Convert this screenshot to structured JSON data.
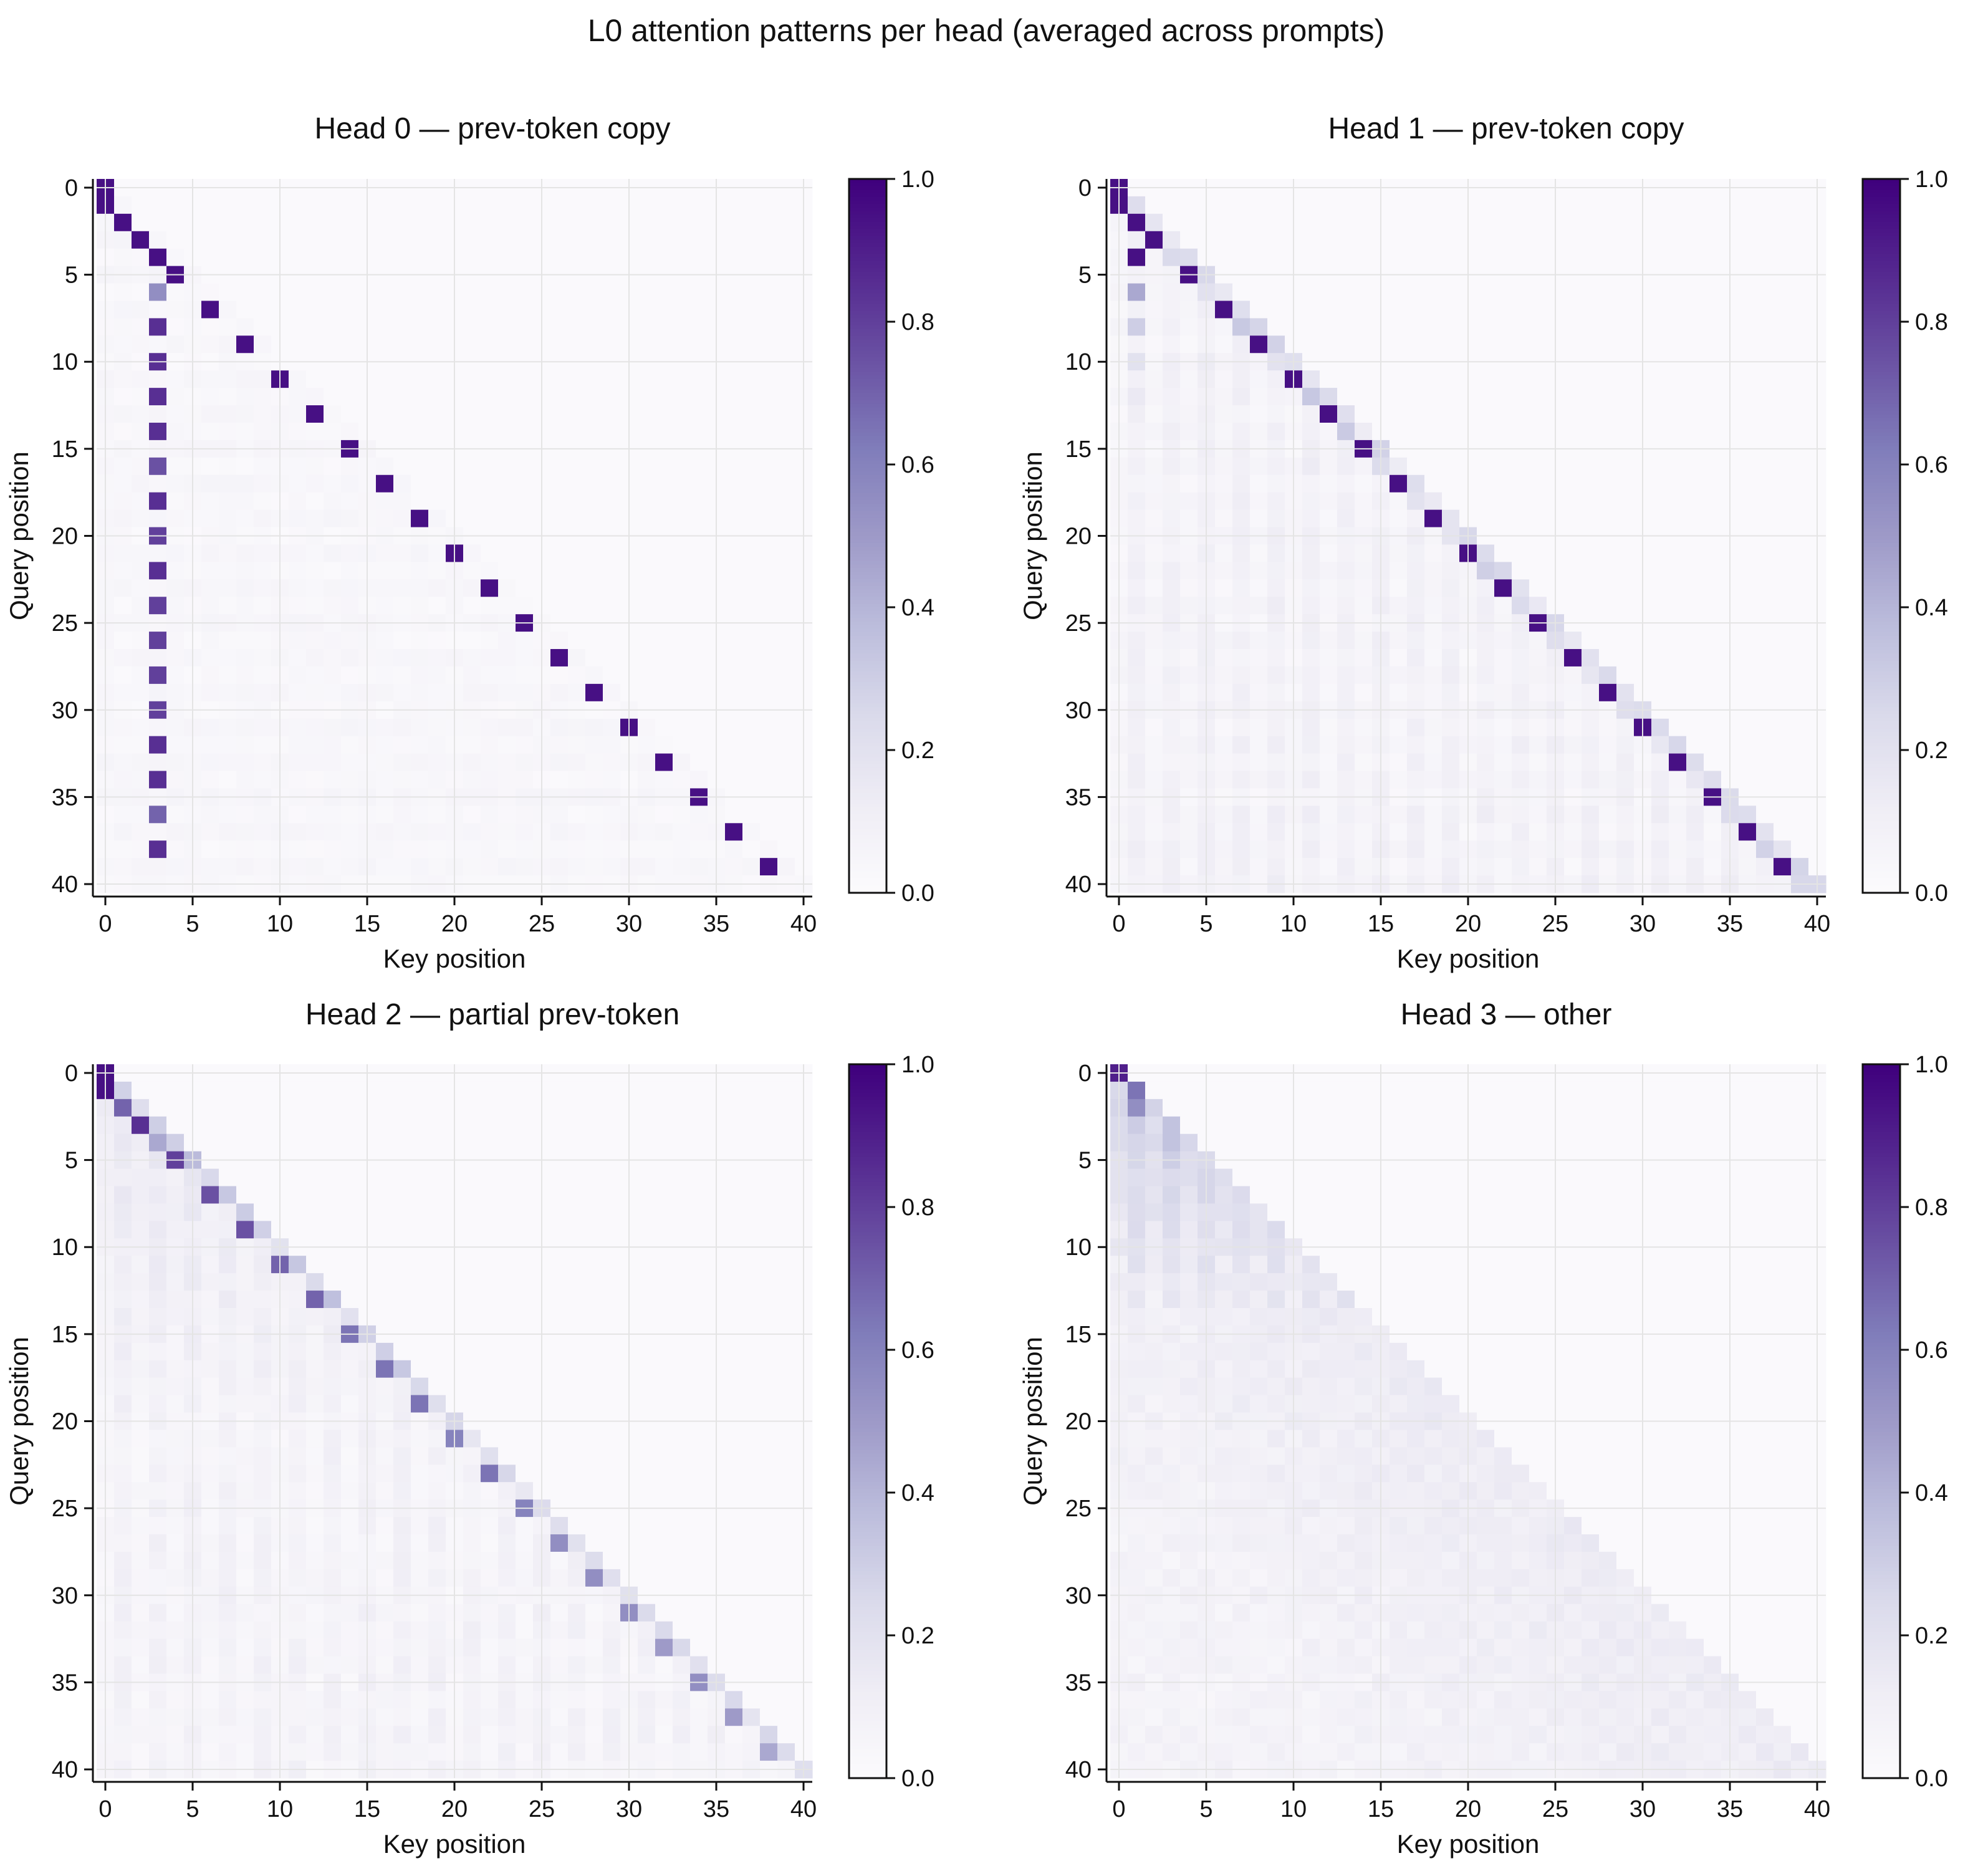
{
  "figure_title": "L0 attention patterns per head (averaged across prompts)",
  "colors": {
    "cmap": [
      "#fcfbfd",
      "#efedf5",
      "#dadaeb",
      "#bcbddc",
      "#9e9ac8",
      "#807dba",
      "#6a51a3",
      "#54278f",
      "#3f007d"
    ],
    "grid": "#e4e4e4",
    "axis": "#111111"
  },
  "chart_data": [
    {
      "type": "heatmap",
      "title": "Head 0 — prev-token copy",
      "pattern": "copy_fixed_col",
      "xlabel": "Key position",
      "ylabel": "Query position",
      "n_positions": 41,
      "xlim": [
        0,
        40
      ],
      "ylim": [
        40,
        0
      ],
      "xticks": [
        0,
        5,
        10,
        15,
        20,
        25,
        30,
        35,
        40
      ],
      "yticks": [
        0,
        5,
        10,
        15,
        20,
        25,
        30,
        35,
        40
      ],
      "diagonal": {
        "rows": [
          0,
          1,
          2,
          3,
          4,
          5,
          7,
          9,
          11,
          13,
          15,
          17,
          19,
          21,
          23,
          25,
          27,
          29,
          31,
          33,
          35,
          37,
          39
        ],
        "cols": [
          0,
          0,
          1,
          2,
          3,
          4,
          6,
          8,
          10,
          12,
          14,
          16,
          18,
          20,
          22,
          24,
          26,
          28,
          30,
          32,
          34,
          36,
          38
        ],
        "value": 0.95
      },
      "column_stripe": {
        "col": 3,
        "rows": [
          6,
          8,
          10,
          12,
          14,
          16,
          18,
          20,
          22,
          24,
          26,
          28,
          30,
          32,
          34,
          36,
          38
        ],
        "values": [
          0.55,
          0.85,
          0.85,
          0.85,
          0.85,
          0.75,
          0.85,
          0.8,
          0.85,
          0.8,
          0.8,
          0.8,
          0.8,
          0.85,
          0.85,
          0.7,
          0.85
        ]
      },
      "background": 0.03,
      "colorbar": {
        "min": 0.0,
        "max": 1.0,
        "ticks": [
          "0.0",
          "0.2",
          "0.4",
          "0.6",
          "0.8",
          "1.0"
        ]
      }
    },
    {
      "type": "heatmap",
      "title": "Head 1 — prev-token copy",
      "pattern": "copy_spread",
      "xlabel": "Key position",
      "ylabel": "Query position",
      "n_positions": 41,
      "xlim": [
        0,
        40
      ],
      "ylim": [
        40,
        0
      ],
      "xticks": [
        0,
        5,
        10,
        15,
        20,
        25,
        30,
        35,
        40
      ],
      "yticks": [
        0,
        5,
        10,
        15,
        20,
        25,
        30,
        35,
        40
      ],
      "diagonal": {
        "rows": [
          0,
          1,
          2,
          3,
          4,
          5,
          7,
          9,
          11,
          13,
          15,
          17,
          19,
          21,
          23,
          25,
          27,
          29,
          31,
          33,
          35,
          37,
          39
        ],
        "cols": [
          0,
          0,
          1,
          2,
          1,
          4,
          6,
          8,
          10,
          12,
          14,
          16,
          18,
          20,
          22,
          24,
          26,
          28,
          30,
          32,
          34,
          36,
          38
        ],
        "value": 0.95
      },
      "column_stripe": {
        "col": 1,
        "rows": [
          6,
          8,
          10,
          12
        ],
        "values": [
          0.45,
          0.3,
          0.2,
          0.15
        ]
      },
      "background": 0.03,
      "colorbar": {
        "min": 0.0,
        "max": 1.0,
        "ticks": [
          "0.0",
          "0.2",
          "0.4",
          "0.6",
          "0.8",
          "1.0"
        ]
      }
    },
    {
      "type": "heatmap",
      "title": "Head 2 — partial prev-token",
      "pattern": "partial",
      "xlabel": "Key position",
      "ylabel": "Query position",
      "n_positions": 41,
      "xlim": [
        0,
        40
      ],
      "ylim": [
        40,
        0
      ],
      "xticks": [
        0,
        5,
        10,
        15,
        20,
        25,
        30,
        35,
        40
      ],
      "yticks": [
        0,
        5,
        10,
        15,
        20,
        25,
        30,
        35,
        40
      ],
      "diagonal": {
        "rows": [
          0,
          1,
          2,
          3,
          4,
          5,
          7,
          9,
          11,
          13,
          15,
          17,
          19,
          21,
          23,
          25,
          27,
          29,
          31,
          33,
          35,
          37,
          39
        ],
        "cols": [
          0,
          0,
          1,
          2,
          3,
          4,
          6,
          8,
          10,
          12,
          14,
          16,
          18,
          20,
          22,
          24,
          26,
          28,
          30,
          32,
          34,
          36,
          38
        ],
        "values": [
          0.95,
          0.95,
          0.7,
          0.85,
          0.45,
          0.8,
          0.75,
          0.75,
          0.7,
          0.7,
          0.65,
          0.65,
          0.65,
          0.6,
          0.65,
          0.6,
          0.55,
          0.55,
          0.55,
          0.5,
          0.55,
          0.5,
          0.45
        ]
      },
      "background": 0.03,
      "colorbar": {
        "min": 0.0,
        "max": 1.0,
        "ticks": [
          "0.0",
          "0.2",
          "0.4",
          "0.6",
          "0.8",
          "1.0"
        ]
      }
    },
    {
      "type": "heatmap",
      "title": "Head 3 — other",
      "pattern": "diffuse",
      "xlabel": "Key position",
      "ylabel": "Query position",
      "n_positions": 41,
      "xlim": [
        0,
        40
      ],
      "ylim": [
        40,
        0
      ],
      "xticks": [
        0,
        5,
        10,
        15,
        20,
        25,
        30,
        35,
        40
      ],
      "yticks": [
        0,
        5,
        10,
        15,
        20,
        25,
        30,
        35,
        40
      ],
      "diagonal": {
        "rows": [
          0,
          1,
          2,
          3,
          4,
          5
        ],
        "cols": [
          0,
          1,
          1,
          3,
          3,
          5
        ],
        "values": [
          0.9,
          0.65,
          0.55,
          0.35,
          0.35,
          0.25
        ]
      },
      "background": 0.03,
      "colorbar": {
        "min": 0.0,
        "max": 1.0,
        "ticks": [
          "0.0",
          "0.2",
          "0.4",
          "0.6",
          "0.8",
          "1.0"
        ]
      }
    }
  ]
}
